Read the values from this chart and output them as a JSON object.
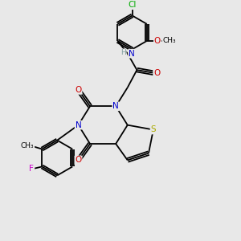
{
  "bg_color": "#e8e8e8",
  "atom_colors": {
    "C": "#000000",
    "N": "#0000cc",
    "O": "#cc0000",
    "S": "#aaaa00",
    "F": "#cc00cc",
    "Cl": "#00aa00",
    "H": "#7f9f9f"
  },
  "bond_color": "#000000",
  "title": ""
}
